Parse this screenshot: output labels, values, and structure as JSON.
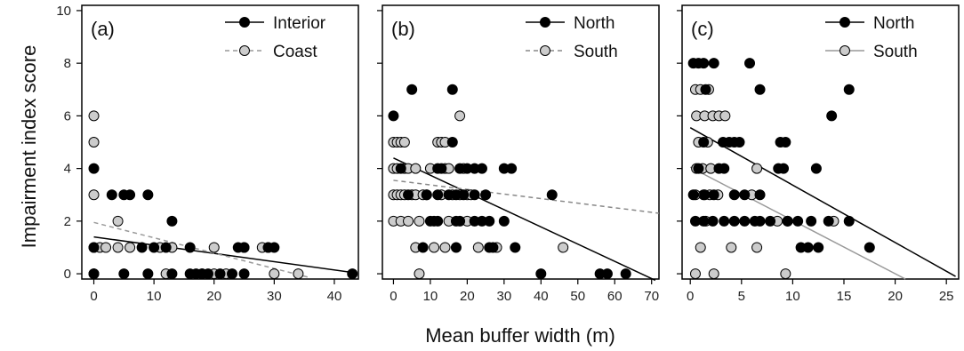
{
  "figure": {
    "ylabel": "Impairment index score",
    "xlabel": "Mean buffer width (m)"
  },
  "chart_data": [
    {
      "type": "scatter",
      "panel_label": "(a)",
      "xlim": [
        -2,
        44
      ],
      "ylim": [
        -0.2,
        10.2
      ],
      "xticks": [
        0,
        10,
        20,
        30,
        40
      ],
      "yticks": [
        0,
        2,
        4,
        6,
        8,
        10
      ],
      "legend_position": "top-right",
      "series": [
        {
          "name": "Interior",
          "fill": "#000000",
          "points": [
            [
              0,
              4
            ],
            [
              0,
              1
            ],
            [
              0,
              0
            ],
            [
              3,
              3
            ],
            [
              5,
              3
            ],
            [
              6,
              3
            ],
            [
              5,
              0
            ],
            [
              8,
              1
            ],
            [
              9,
              3
            ],
            [
              9,
              0
            ],
            [
              10,
              1
            ],
            [
              12,
              1
            ],
            [
              13,
              2
            ],
            [
              13,
              0
            ],
            [
              16,
              1
            ],
            [
              16,
              0
            ],
            [
              17,
              0
            ],
            [
              18,
              0
            ],
            [
              19,
              0
            ],
            [
              21,
              0
            ],
            [
              23,
              0
            ],
            [
              24,
              1
            ],
            [
              25,
              1
            ],
            [
              25,
              0
            ],
            [
              29,
              1
            ],
            [
              30,
              1
            ],
            [
              43,
              0
            ]
          ],
          "trend": {
            "from": [
              0,
              1.4
            ],
            "to": [
              43,
              0.05
            ],
            "style": "solid",
            "color": "#000000"
          }
        },
        {
          "name": "Coast",
          "fill": "#cccccc",
          "points": [
            [
              0,
              6
            ],
            [
              0,
              5
            ],
            [
              0,
              3
            ],
            [
              0,
              1
            ],
            [
              0,
              0
            ],
            [
              1,
              1
            ],
            [
              2,
              1
            ],
            [
              4,
              2
            ],
            [
              4,
              1
            ],
            [
              6,
              1
            ],
            [
              11,
              1
            ],
            [
              12,
              0
            ],
            [
              13,
              1
            ],
            [
              18,
              0
            ],
            [
              20,
              1
            ],
            [
              20,
              0
            ],
            [
              22,
              0
            ],
            [
              25,
              1
            ],
            [
              28,
              1
            ],
            [
              29,
              1
            ],
            [
              30,
              0
            ],
            [
              34,
              0
            ]
          ],
          "trend": {
            "from": [
              0,
              1.95
            ],
            "to": [
              36,
              -0.15
            ],
            "style": "dashed",
            "color": "#999999"
          }
        }
      ]
    },
    {
      "type": "scatter",
      "panel_label": "(b)",
      "xlim": [
        -3,
        72
      ],
      "ylim": [
        -0.2,
        10.2
      ],
      "xticks": [
        0,
        10,
        20,
        30,
        40,
        50,
        60,
        70
      ],
      "yticks": [
        0,
        2,
        4,
        6,
        8,
        10
      ],
      "legend_position": "top-right",
      "series": [
        {
          "name": "North",
          "fill": "#000000",
          "points": [
            [
              0,
              6
            ],
            [
              5,
              7
            ],
            [
              16,
              7
            ],
            [
              2,
              4
            ],
            [
              12,
              4
            ],
            [
              13,
              4
            ],
            [
              16,
              5
            ],
            [
              18,
              4
            ],
            [
              20,
              4
            ],
            [
              22,
              4
            ],
            [
              24,
              4
            ],
            [
              30,
              4
            ],
            [
              32,
              4
            ],
            [
              4,
              3
            ],
            [
              9,
              3
            ],
            [
              12,
              3
            ],
            [
              15,
              3
            ],
            [
              17,
              3
            ],
            [
              19,
              3
            ],
            [
              22,
              3
            ],
            [
              25,
              3
            ],
            [
              43,
              3
            ],
            [
              10,
              2
            ],
            [
              11,
              2
            ],
            [
              12,
              2
            ],
            [
              17,
              2
            ],
            [
              18,
              2
            ],
            [
              22,
              2
            ],
            [
              24,
              2
            ],
            [
              26,
              2
            ],
            [
              30,
              2
            ],
            [
              8,
              1
            ],
            [
              17,
              1
            ],
            [
              26,
              1
            ],
            [
              27,
              1
            ],
            [
              33,
              1
            ],
            [
              40,
              0
            ],
            [
              56,
              0
            ],
            [
              58,
              0
            ],
            [
              63,
              0
            ]
          ],
          "trend": {
            "from": [
              0,
              4.4
            ],
            "to": [
              71,
              -0.25
            ],
            "style": "solid",
            "color": "#000000"
          }
        },
        {
          "name": "South",
          "fill": "#cccccc",
          "points": [
            [
              0,
              5
            ],
            [
              1,
              5
            ],
            [
              2,
              5
            ],
            [
              3,
              5
            ],
            [
              12,
              5
            ],
            [
              13,
              5
            ],
            [
              14,
              5
            ],
            [
              18,
              6
            ],
            [
              0,
              4
            ],
            [
              1,
              4
            ],
            [
              3,
              4
            ],
            [
              4,
              4
            ],
            [
              6,
              4
            ],
            [
              10,
              4
            ],
            [
              14,
              4
            ],
            [
              15,
              4
            ],
            [
              19,
              4
            ],
            [
              0,
              3
            ],
            [
              1,
              3
            ],
            [
              2,
              3
            ],
            [
              3,
              3
            ],
            [
              5,
              3
            ],
            [
              6,
              3
            ],
            [
              8,
              3
            ],
            [
              9,
              3
            ],
            [
              13,
              3
            ],
            [
              16,
              3
            ],
            [
              18,
              3
            ],
            [
              20,
              3
            ],
            [
              21,
              3
            ],
            [
              0,
              2
            ],
            [
              2,
              2
            ],
            [
              4,
              2
            ],
            [
              7,
              2
            ],
            [
              15,
              2
            ],
            [
              20,
              2
            ],
            [
              6,
              1
            ],
            [
              11,
              1
            ],
            [
              14,
              1
            ],
            [
              23,
              1
            ],
            [
              28,
              1
            ],
            [
              46,
              1
            ],
            [
              7,
              0
            ]
          ],
          "trend": {
            "from": [
              0,
              3.55
            ],
            "to": [
              72,
              2.3
            ],
            "style": "dashed",
            "color": "#888888"
          }
        }
      ]
    },
    {
      "type": "scatter",
      "panel_label": "(c)",
      "xlim": [
        -0.8,
        26.2
      ],
      "ylim": [
        -0.2,
        10.2
      ],
      "xticks": [
        0,
        5,
        10,
        15,
        20,
        25
      ],
      "yticks": [
        0,
        2,
        4,
        6,
        8,
        10
      ],
      "legend_position": "top-right",
      "series": [
        {
          "name": "North",
          "fill": "#000000",
          "points": [
            [
              0.3,
              8
            ],
            [
              0.8,
              8
            ],
            [
              1.3,
              8
            ],
            [
              2.3,
              8
            ],
            [
              5.8,
              8
            ],
            [
              1.5,
              7
            ],
            [
              6.8,
              7
            ],
            [
              15.5,
              7
            ],
            [
              13.8,
              6
            ],
            [
              1.3,
              5
            ],
            [
              3.2,
              5
            ],
            [
              3.8,
              5
            ],
            [
              4.3,
              5
            ],
            [
              4.8,
              5
            ],
            [
              8.8,
              5
            ],
            [
              9.3,
              5
            ],
            [
              0.8,
              4
            ],
            [
              2.8,
              4
            ],
            [
              3.3,
              4
            ],
            [
              8.6,
              4
            ],
            [
              9.1,
              4
            ],
            [
              12.3,
              4
            ],
            [
              0.3,
              3
            ],
            [
              1.4,
              3
            ],
            [
              2.3,
              3
            ],
            [
              4.3,
              3
            ],
            [
              5.3,
              3
            ],
            [
              6.8,
              3
            ],
            [
              0.5,
              2
            ],
            [
              1.3,
              2
            ],
            [
              2.2,
              2
            ],
            [
              3.3,
              2
            ],
            [
              4.3,
              2
            ],
            [
              5.3,
              2
            ],
            [
              6.3,
              2
            ],
            [
              6.8,
              2
            ],
            [
              7.8,
              2
            ],
            [
              9.5,
              2
            ],
            [
              10.5,
              2
            ],
            [
              11.8,
              2
            ],
            [
              13.5,
              2
            ],
            [
              15.5,
              2
            ],
            [
              10.8,
              1
            ],
            [
              11.5,
              1
            ],
            [
              12.5,
              1
            ],
            [
              17.5,
              1
            ]
          ],
          "trend": {
            "from": [
              0,
              5.55
            ],
            "to": [
              25.9,
              -0.1
            ],
            "style": "solid",
            "color": "#000000"
          }
        },
        {
          "name": "South",
          "fill": "#cccccc",
          "points": [
            [
              0.5,
              7
            ],
            [
              1,
              7
            ],
            [
              1.8,
              7
            ],
            [
              0.6,
              6
            ],
            [
              1.4,
              6
            ],
            [
              2.2,
              6
            ],
            [
              2.8,
              6
            ],
            [
              3.4,
              6
            ],
            [
              0.8,
              5
            ],
            [
              1.7,
              5
            ],
            [
              0.6,
              4
            ],
            [
              1.2,
              4
            ],
            [
              2,
              4
            ],
            [
              6.5,
              4
            ],
            [
              0.5,
              3
            ],
            [
              1.3,
              3
            ],
            [
              1.9,
              3
            ],
            [
              2.7,
              3
            ],
            [
              6,
              3
            ],
            [
              1.5,
              2
            ],
            [
              8.5,
              2
            ],
            [
              9.5,
              2
            ],
            [
              14,
              2
            ],
            [
              1,
              1
            ],
            [
              4,
              1
            ],
            [
              6.5,
              1
            ],
            [
              0.5,
              0
            ],
            [
              2.3,
              0
            ],
            [
              9.3,
              0
            ]
          ],
          "trend": {
            "from": [
              0,
              4.05
            ],
            "to": [
              21,
              -0.2
            ],
            "style": "solid",
            "color": "#999999"
          }
        }
      ]
    }
  ]
}
